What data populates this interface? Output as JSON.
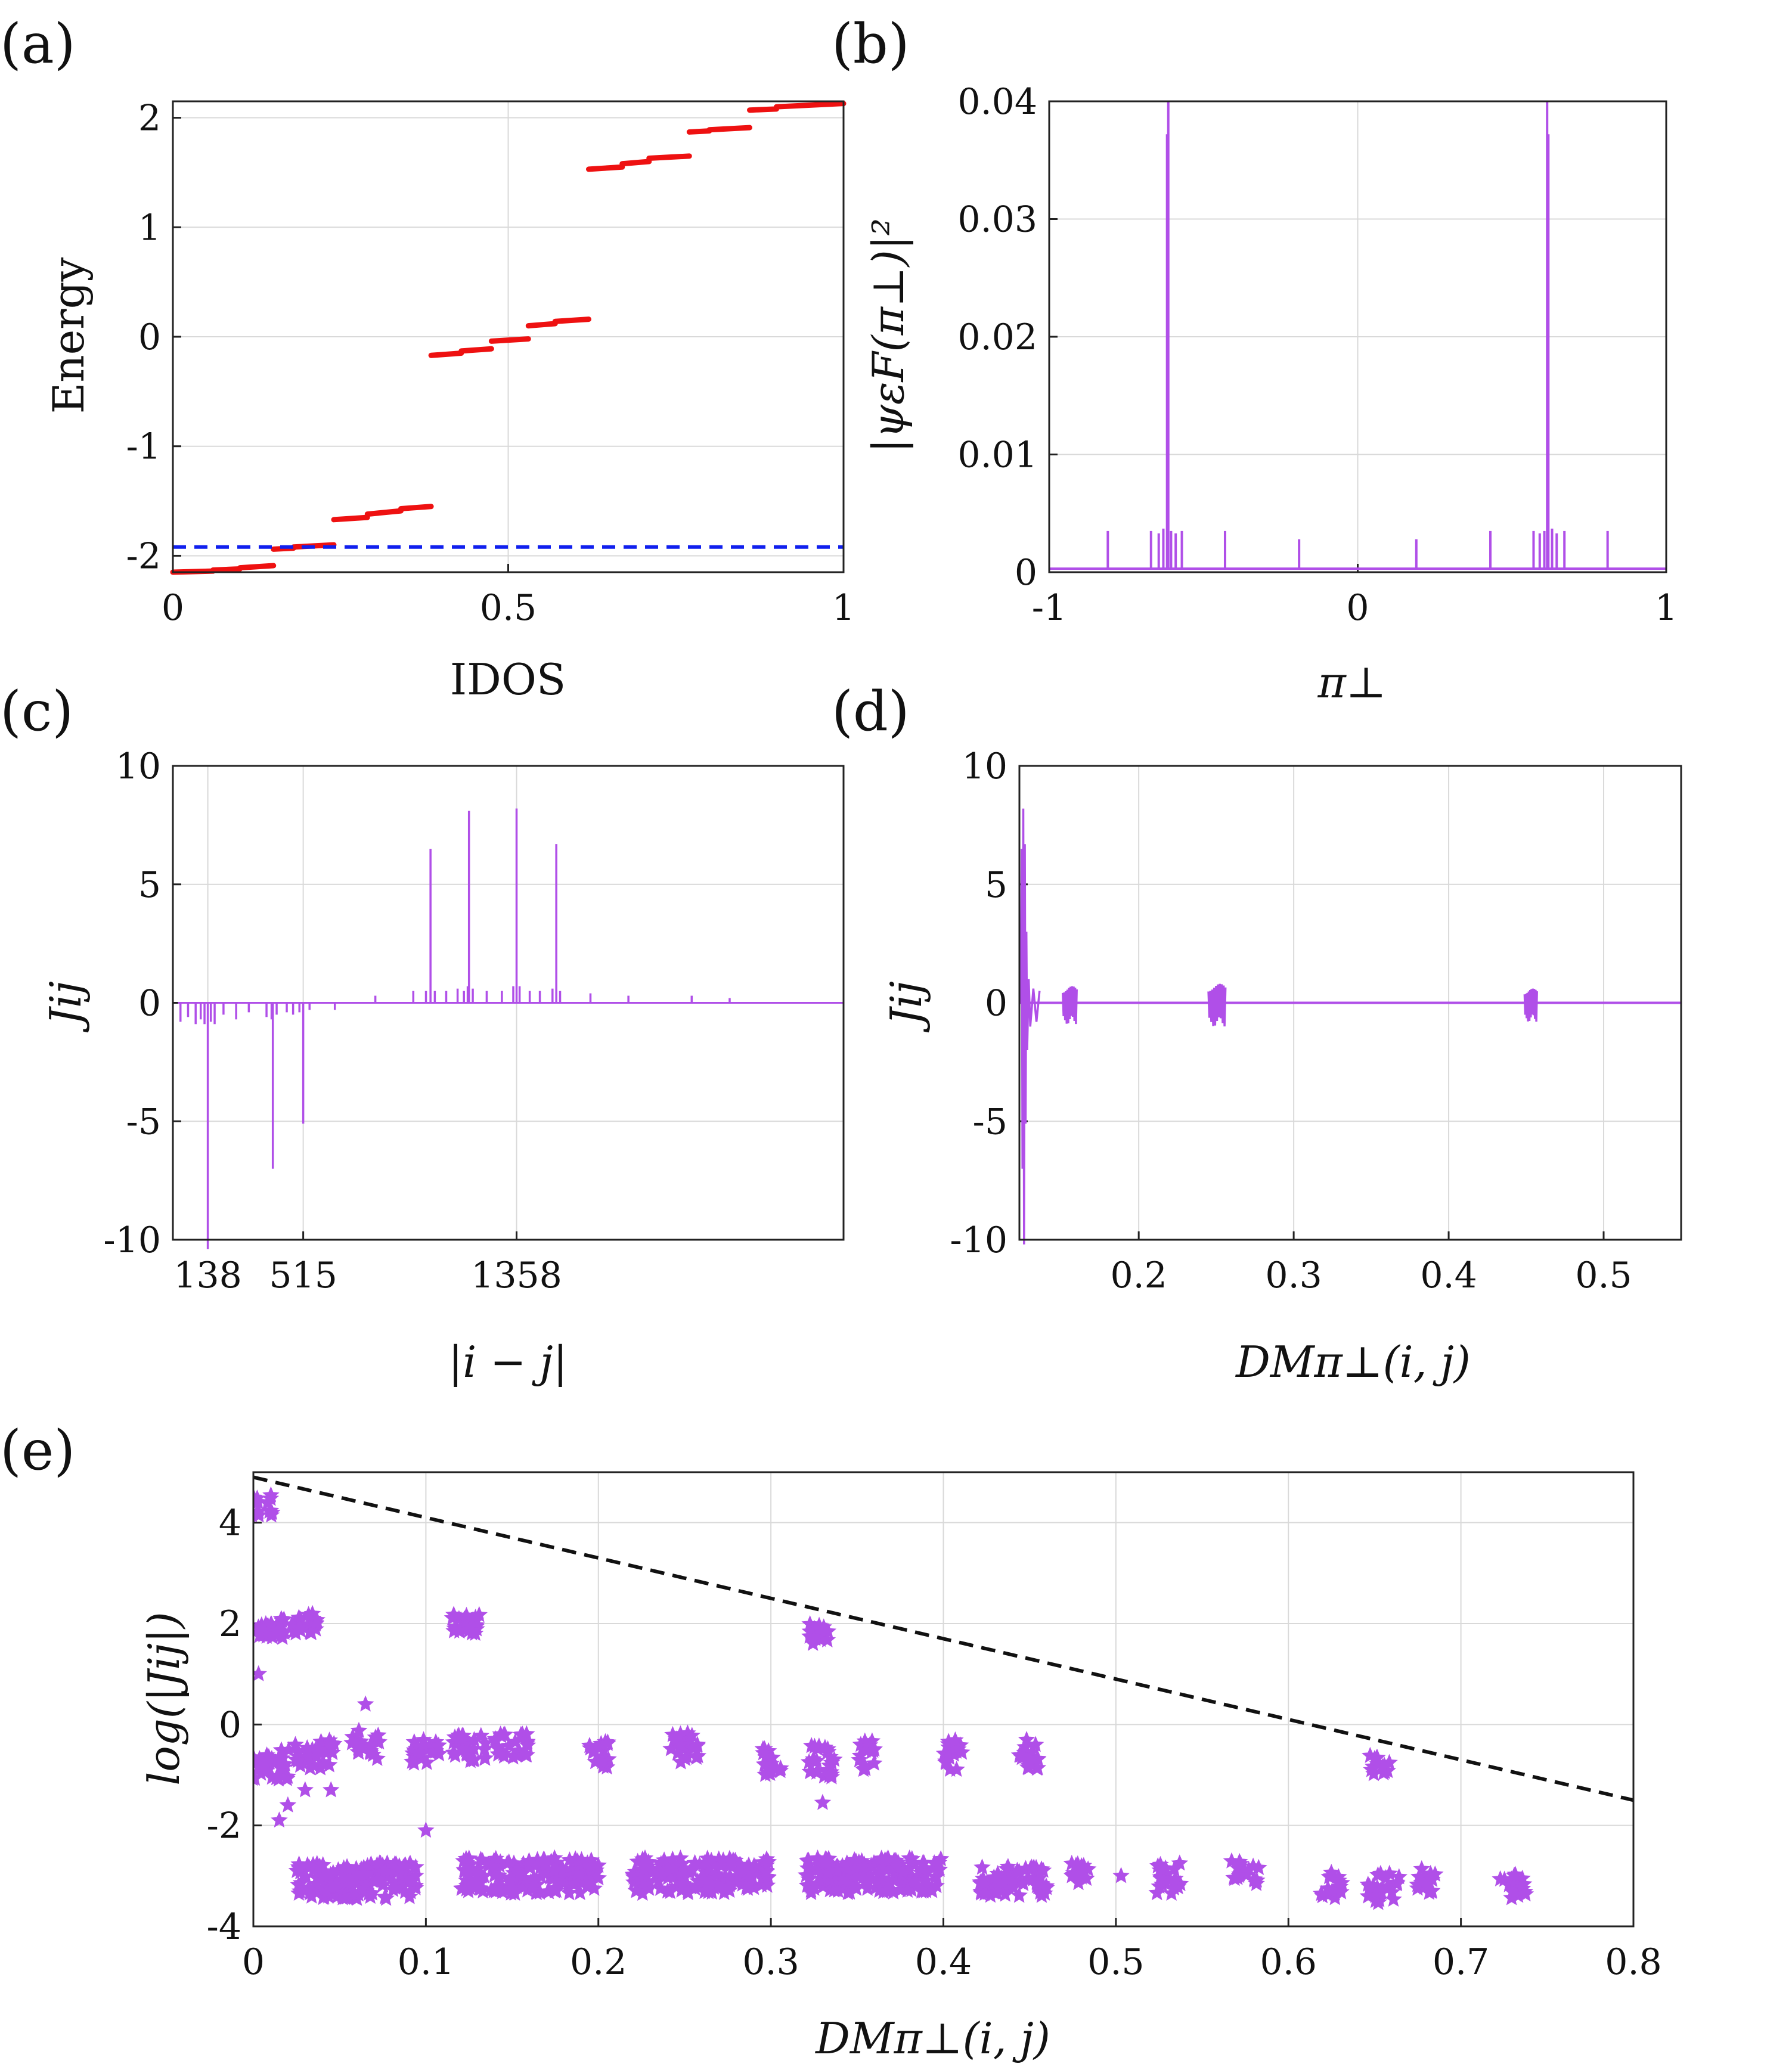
{
  "colors": {
    "purple": "#b04fe8",
    "red": "#ee1111",
    "blue": "#1020ee",
    "black_dash": "#111111"
  },
  "chart_data": [
    {
      "panel_label": "(a)",
      "type": "line",
      "xlabel": "IDOS",
      "ylabel": "Energy",
      "xlim": [
        0,
        1
      ],
      "ylim": [
        -2.15,
        2.15
      ],
      "xticks": [
        "0",
        "0.5",
        "1"
      ],
      "yticks": [
        "-2",
        "-1",
        "0",
        "1",
        "2"
      ],
      "grid": true,
      "series": [
        {
          "style": "red solid steps",
          "segments": [
            [
              0.0,
              -2.15,
              0.06,
              -2.14
            ],
            [
              0.06,
              -2.13,
              0.1,
              -2.12
            ],
            [
              0.1,
              -2.11,
              0.15,
              -2.09
            ],
            [
              0.15,
              -1.94,
              0.18,
              -1.93
            ],
            [
              0.18,
              -1.92,
              0.24,
              -1.9
            ],
            [
              0.24,
              -1.67,
              0.29,
              -1.65
            ],
            [
              0.29,
              -1.62,
              0.34,
              -1.59
            ],
            [
              0.34,
              -1.57,
              0.385,
              -1.55
            ],
            [
              0.385,
              -0.17,
              0.43,
              -0.15
            ],
            [
              0.43,
              -0.13,
              0.475,
              -0.11
            ],
            [
              0.475,
              -0.04,
              0.53,
              -0.02
            ],
            [
              0.53,
              0.1,
              0.57,
              0.12
            ],
            [
              0.57,
              0.14,
              0.62,
              0.16
            ],
            [
              0.62,
              1.53,
              0.67,
              1.55
            ],
            [
              0.67,
              1.58,
              0.71,
              1.6
            ],
            [
              0.71,
              1.63,
              0.77,
              1.65
            ],
            [
              0.77,
              1.87,
              0.8,
              1.88
            ],
            [
              0.8,
              1.89,
              0.86,
              1.91
            ],
            [
              0.86,
              2.07,
              0.9,
              2.08
            ],
            [
              0.9,
              2.1,
              1.0,
              2.13
            ]
          ]
        },
        {
          "style": "blue dashed",
          "y": -1.92
        }
      ]
    },
    {
      "panel_label": "(b)",
      "type": "line",
      "ylabel": "|ψεF(π⊥)|²",
      "xlabel": "π⊥",
      "xlim": [
        -1,
        1
      ],
      "ylim": [
        0,
        0.04
      ],
      "xticks": [
        "-1",
        "0",
        "1"
      ],
      "yticks": [
        "0",
        "0.01",
        "0.02",
        "0.03",
        "0.04"
      ],
      "grid": true,
      "peaks": [
        [
          -0.81,
          0.0035
        ],
        [
          -0.67,
          0.0035
        ],
        [
          -0.645,
          0.0033
        ],
        [
          -0.63,
          0.0037
        ],
        [
          -0.618,
          0.0372
        ],
        [
          -0.614,
          0.04
        ],
        [
          -0.605,
          0.0035
        ],
        [
          -0.59,
          0.0033
        ],
        [
          -0.57,
          0.0035
        ],
        [
          -0.43,
          0.0035
        ],
        [
          -0.19,
          0.0028
        ],
        [
          0.19,
          0.0028
        ],
        [
          0.43,
          0.0035
        ],
        [
          0.57,
          0.0035
        ],
        [
          0.59,
          0.0033
        ],
        [
          0.605,
          0.0035
        ],
        [
          0.614,
          0.04
        ],
        [
          0.618,
          0.0372
        ],
        [
          0.63,
          0.0037
        ],
        [
          0.645,
          0.0033
        ],
        [
          0.67,
          0.0035
        ],
        [
          0.81,
          0.0035
        ]
      ]
    },
    {
      "panel_label": "(c)",
      "type": "bar",
      "ylabel": "Jij",
      "xlabel": "|i − j|",
      "xlim": [
        0,
        2650
      ],
      "ylim": [
        -10,
        10
      ],
      "xticks": [
        "138",
        "515",
        "1358"
      ],
      "xtick_values": [
        138,
        515,
        1358
      ],
      "yticks": [
        "-10",
        "-5",
        "0",
        "5",
        "10"
      ],
      "grid": true,
      "spikes": [
        [
          30,
          -0.8
        ],
        [
          60,
          -0.6
        ],
        [
          90,
          -0.9
        ],
        [
          110,
          -0.7
        ],
        [
          125,
          -0.9
        ],
        [
          138,
          -10.4
        ],
        [
          150,
          -0.8
        ],
        [
          165,
          -0.9
        ],
        [
          200,
          -0.5
        ],
        [
          250,
          -0.7
        ],
        [
          300,
          -0.4
        ],
        [
          370,
          -0.6
        ],
        [
          390,
          -0.7
        ],
        [
          395,
          -7.0
        ],
        [
          410,
          -0.5
        ],
        [
          450,
          -0.4
        ],
        [
          475,
          -0.5
        ],
        [
          500,
          -0.4
        ],
        [
          515,
          -5.1
        ],
        [
          540,
          -0.3
        ],
        [
          640,
          -0.3
        ],
        [
          800,
          0.3
        ],
        [
          950,
          0.5
        ],
        [
          1000,
          0.5
        ],
        [
          1018,
          6.5
        ],
        [
          1035,
          0.5
        ],
        [
          1080,
          0.5
        ],
        [
          1125,
          0.6
        ],
        [
          1150,
          0.5
        ],
        [
          1165,
          0.7
        ],
        [
          1170,
          8.1
        ],
        [
          1185,
          0.6
        ],
        [
          1240,
          0.5
        ],
        [
          1300,
          0.5
        ],
        [
          1345,
          0.7
        ],
        [
          1358,
          8.2
        ],
        [
          1370,
          0.7
        ],
        [
          1410,
          0.5
        ],
        [
          1450,
          0.5
        ],
        [
          1500,
          0.6
        ],
        [
          1515,
          6.7
        ],
        [
          1530,
          0.5
        ],
        [
          1650,
          0.4
        ],
        [
          1800,
          0.3
        ],
        [
          2050,
          0.3
        ],
        [
          2200,
          0.2
        ]
      ]
    },
    {
      "panel_label": "(d)",
      "type": "line",
      "ylabel": "Jij",
      "xlabel": "DMπ⊥(i, j)",
      "xlim": [
        0.123,
        0.55
      ],
      "ylim": [
        -10,
        10
      ],
      "xticks": [
        "0.2",
        "0.3",
        "0.4",
        "0.5"
      ],
      "xtick_values": [
        0.2,
        0.3,
        0.4,
        0.5
      ],
      "yticks": [
        "-10",
        "-5",
        "0",
        "5",
        "10"
      ],
      "grid": true,
      "spike_cluster": [
        [
          0.124,
          0.0
        ],
        [
          0.1245,
          6.5
        ],
        [
          0.125,
          -7.0
        ],
        [
          0.1255,
          8.2
        ],
        [
          0.126,
          -10.2
        ],
        [
          0.1265,
          6.7
        ],
        [
          0.127,
          -5.1
        ],
        [
          0.1275,
          3.0
        ],
        [
          0.128,
          -2.0
        ],
        [
          0.129,
          1.0
        ],
        [
          0.13,
          -1.0
        ],
        [
          0.132,
          0.6
        ],
        [
          0.134,
          -0.8
        ],
        [
          0.136,
          0.5
        ]
      ],
      "bursts": [
        [
          0.151,
          0.16,
          0.7,
          -0.9
        ],
        [
          0.245,
          0.256,
          0.8,
          -1.0
        ],
        [
          0.449,
          0.457,
          0.6,
          -0.8
        ]
      ]
    },
    {
      "panel_label": "(e)",
      "type": "scatter",
      "ylabel": "log(|Jij|)",
      "xlabel": "DMπ⊥(i, j)",
      "xlim": [
        0,
        0.8
      ],
      "ylim": [
        -4,
        5
      ],
      "xticks": [
        "0",
        "0.1",
        "0.2",
        "0.3",
        "0.4",
        "0.5",
        "0.6",
        "0.7",
        "0.8"
      ],
      "yticks": [
        "-4",
        "-2",
        "0",
        "2",
        "4"
      ],
      "grid": true,
      "clusters": [
        [
          0.005,
          4.35,
          0.006,
          0.22,
          14
        ],
        [
          0.01,
          1.9,
          0.008,
          0.2,
          30
        ],
        [
          0.03,
          2.0,
          0.008,
          0.2,
          28
        ],
        [
          0.123,
          2.0,
          0.008,
          0.2,
          28
        ],
        [
          0.328,
          1.8,
          0.006,
          0.2,
          18
        ],
        [
          0.653,
          -0.8,
          0.006,
          0.2,
          14
        ],
        [
          0.01,
          -0.8,
          0.012,
          0.3,
          30
        ],
        [
          0.035,
          -0.6,
          0.012,
          0.3,
          30
        ],
        [
          0.065,
          -0.4,
          0.008,
          0.3,
          22
        ],
        [
          0.1,
          -0.5,
          0.008,
          0.3,
          22
        ],
        [
          0.125,
          -0.5,
          0.01,
          0.3,
          26
        ],
        [
          0.15,
          -0.45,
          0.01,
          0.3,
          26
        ],
        [
          0.2,
          -0.6,
          0.006,
          0.3,
          18
        ],
        [
          0.25,
          -0.45,
          0.008,
          0.3,
          22
        ],
        [
          0.3,
          -0.7,
          0.006,
          0.3,
          18
        ],
        [
          0.33,
          -0.7,
          0.008,
          0.35,
          26
        ],
        [
          0.355,
          -0.6,
          0.006,
          0.3,
          18
        ],
        [
          0.405,
          -0.6,
          0.006,
          0.3,
          18
        ],
        [
          0.45,
          -0.6,
          0.006,
          0.3,
          18
        ],
        [
          0.06,
          -3.1,
          0.035,
          0.35,
          160
        ],
        [
          0.16,
          -3.0,
          0.04,
          0.35,
          170
        ],
        [
          0.26,
          -3.0,
          0.04,
          0.35,
          170
        ],
        [
          0.36,
          -3.0,
          0.04,
          0.35,
          160
        ],
        [
          0.44,
          -3.1,
          0.02,
          0.3,
          70
        ],
        [
          0.48,
          -2.95,
          0.006,
          0.25,
          14
        ],
        [
          0.53,
          -3.05,
          0.008,
          0.3,
          22
        ],
        [
          0.575,
          -2.95,
          0.008,
          0.25,
          22
        ],
        [
          0.625,
          -3.2,
          0.006,
          0.3,
          16
        ],
        [
          0.655,
          -3.25,
          0.01,
          0.3,
          24
        ],
        [
          0.68,
          -3.1,
          0.006,
          0.25,
          16
        ],
        [
          0.73,
          -3.2,
          0.008,
          0.3,
          18
        ]
      ],
      "singles": [
        [
          0.003,
          1.0
        ],
        [
          0.02,
          -1.6
        ],
        [
          0.015,
          -1.9
        ],
        [
          0.065,
          0.4
        ],
        [
          0.1,
          -2.1
        ],
        [
          0.503,
          -3.0
        ],
        [
          0.33,
          -1.55
        ],
        [
          0.03,
          -1.3
        ],
        [
          0.045,
          -1.3
        ]
      ],
      "dashed_line": {
        "x": [
          0,
          0.8
        ],
        "y": [
          4.9,
          -1.5
        ]
      }
    }
  ]
}
